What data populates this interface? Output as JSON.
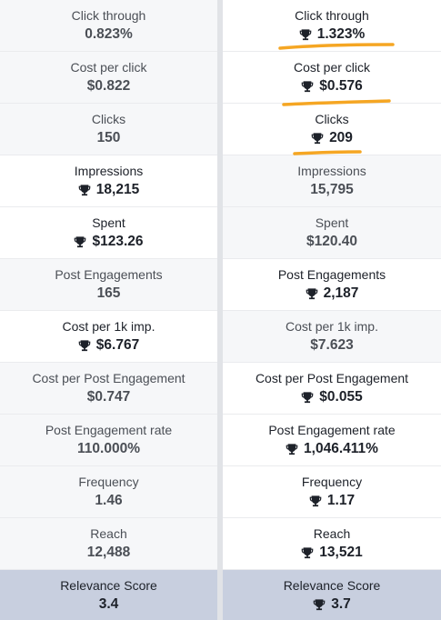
{
  "colors": {
    "accent_underline": "#f5a623",
    "score_row": "#c8cfdf"
  },
  "left": {
    "rows": [
      {
        "label": "Click through",
        "value": "0.823%",
        "trophy": false,
        "tone": "grey"
      },
      {
        "label": "Cost per click",
        "value": "$0.822",
        "trophy": false,
        "tone": "grey"
      },
      {
        "label": "Clicks",
        "value": "150",
        "trophy": false,
        "tone": "grey"
      },
      {
        "label": "Impressions",
        "value": "18,215",
        "trophy": true,
        "tone": "white"
      },
      {
        "label": "Spent",
        "value": "$123.26",
        "trophy": true,
        "tone": "white"
      },
      {
        "label": "Post Engagements",
        "value": "165",
        "trophy": false,
        "tone": "grey"
      },
      {
        "label": "Cost per 1k imp.",
        "value": "$6.767",
        "trophy": true,
        "tone": "white"
      },
      {
        "label": "Cost per Post Engagement",
        "value": "$0.747",
        "trophy": false,
        "tone": "grey"
      },
      {
        "label": "Post Engagement rate",
        "value": "110.000%",
        "trophy": false,
        "tone": "grey"
      },
      {
        "label": "Frequency",
        "value": "1.46",
        "trophy": false,
        "tone": "grey"
      },
      {
        "label": "Reach",
        "value": "12,488",
        "trophy": false,
        "tone": "grey"
      },
      {
        "label": "Relevance Score",
        "value": "3.4",
        "trophy": false,
        "tone": "score"
      }
    ]
  },
  "right": {
    "rows": [
      {
        "label": "Click through",
        "value": "1.323%",
        "trophy": true,
        "tone": "white"
      },
      {
        "label": "Cost per click",
        "value": "$0.576",
        "trophy": true,
        "tone": "white"
      },
      {
        "label": "Clicks",
        "value": "209",
        "trophy": true,
        "tone": "white"
      },
      {
        "label": "Impressions",
        "value": "15,795",
        "trophy": false,
        "tone": "grey"
      },
      {
        "label": "Spent",
        "value": "$120.40",
        "trophy": false,
        "tone": "grey"
      },
      {
        "label": "Post Engagements",
        "value": "2,187",
        "trophy": true,
        "tone": "white"
      },
      {
        "label": "Cost per 1k imp.",
        "value": "$7.623",
        "trophy": false,
        "tone": "grey"
      },
      {
        "label": "Cost per Post Engagement",
        "value": "$0.055",
        "trophy": true,
        "tone": "white"
      },
      {
        "label": "Post Engagement rate",
        "value": "1,046.411%",
        "trophy": true,
        "tone": "white"
      },
      {
        "label": "Frequency",
        "value": "1.17",
        "trophy": true,
        "tone": "white"
      },
      {
        "label": "Reach",
        "value": "13,521",
        "trophy": true,
        "tone": "white"
      },
      {
        "label": "Relevance Score",
        "value": "3.7",
        "trophy": true,
        "tone": "score"
      }
    ]
  },
  "icons": {
    "trophy": "trophy-icon"
  }
}
